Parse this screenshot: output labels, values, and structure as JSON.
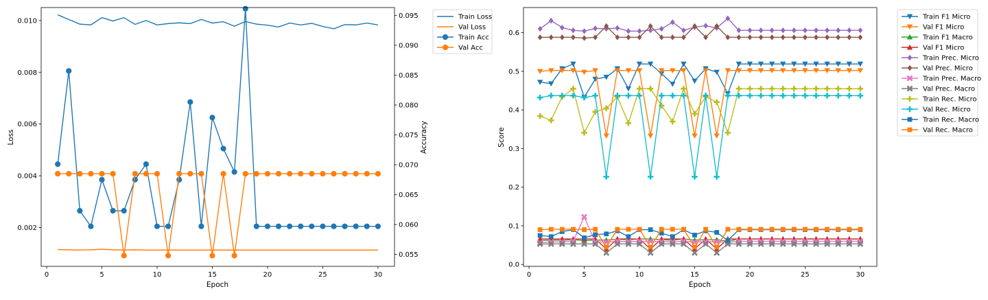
{
  "chart_data": [
    {
      "type": "line",
      "xlabel": "Epoch",
      "ylabel": "Loss",
      "ylabel_right": "Accuracy",
      "xlim": [
        -0.5,
        31.5
      ],
      "ylim": [
        0.0005,
        0.0105
      ],
      "ylim_right": [
        0.053,
        0.0963
      ],
      "xticks": [
        0,
        5,
        10,
        15,
        20,
        25,
        30
      ],
      "yticks": [
        0.002,
        0.004,
        0.006,
        0.008,
        0.01
      ],
      "ytick_labels": [
        "0.002",
        "0.004",
        "0.006",
        "0.008",
        "0.010"
      ],
      "yticks_right": [
        0.055,
        0.06,
        0.065,
        0.07,
        0.075,
        0.08,
        0.085,
        0.09,
        0.095
      ],
      "ytick_labels_right": [
        "0.055",
        "0.060",
        "0.065",
        "0.070",
        "0.075",
        "0.080",
        "0.085",
        "0.090",
        "0.095"
      ],
      "grid": false,
      "legend_position": "outside-right-top",
      "x": [
        1,
        2,
        3,
        4,
        5,
        6,
        7,
        8,
        9,
        10,
        11,
        12,
        13,
        14,
        15,
        16,
        17,
        18,
        19,
        20,
        21,
        22,
        23,
        24,
        25,
        26,
        27,
        28,
        29,
        30
      ],
      "series": [
        {
          "name": "Train Loss",
          "axis": "left",
          "color": "#1f77b4",
          "marker": "none",
          "values": [
            0.01022,
            0.01004,
            0.00986,
            0.00983,
            0.01011,
            0.00998,
            0.01011,
            0.00985,
            0.01,
            0.00983,
            0.00988,
            0.00991,
            0.00988,
            0.01004,
            0.0099,
            0.00995,
            0.00978,
            0.00996,
            0.00986,
            0.00982,
            0.00975,
            0.0099,
            0.00983,
            0.00989,
            0.00977,
            0.00968,
            0.00984,
            0.00983,
            0.0099,
            0.00983
          ]
        },
        {
          "name": "Val Loss",
          "axis": "left",
          "color": "#ff7f0e",
          "marker": "none",
          "values": [
            0.00115,
            0.00114,
            0.00113,
            0.00114,
            0.00116,
            0.00114,
            0.00113,
            0.00114,
            0.00113,
            0.00113,
            0.00113,
            0.00113,
            0.00113,
            0.00113,
            0.00113,
            0.00113,
            0.00113,
            0.00113,
            0.00113,
            0.00113,
            0.00113,
            0.00113,
            0.00113,
            0.00113,
            0.00113,
            0.00113,
            0.00113,
            0.00113,
            0.00113,
            0.00113
          ]
        },
        {
          "name": "Train Acc",
          "axis": "right",
          "color": "#1f77b4",
          "marker": "circle",
          "values": [
            0.0701,
            0.0857,
            0.0623,
            0.0597,
            0.0675,
            0.0623,
            0.0623,
            0.0675,
            0.0701,
            0.0597,
            0.0597,
            0.0675,
            0.0805,
            0.0597,
            0.0779,
            0.0727,
            0.0688,
            0.0961,
            0.0597,
            0.0597,
            0.0597,
            0.0597,
            0.0597,
            0.0597,
            0.0597,
            0.0597,
            0.0597,
            0.0597,
            0.0597,
            0.0597
          ]
        },
        {
          "name": "Val Acc",
          "axis": "right",
          "color": "#ff7f0e",
          "marker": "circle",
          "values": [
            0.0685,
            0.0685,
            0.0685,
            0.0685,
            0.0685,
            0.0685,
            0.0548,
            0.0685,
            0.0685,
            0.0685,
            0.0548,
            0.0685,
            0.0685,
            0.0685,
            0.0548,
            0.0685,
            0.0548,
            0.0685,
            0.0685,
            0.0685,
            0.0685,
            0.0685,
            0.0685,
            0.0685,
            0.0685,
            0.0685,
            0.0685,
            0.0685,
            0.0685,
            0.0685
          ]
        }
      ]
    },
    {
      "type": "line",
      "xlabel": "Epoch",
      "ylabel": "Score",
      "xlim": [
        -0.5,
        31.5
      ],
      "ylim": [
        -0.005,
        0.665
      ],
      "xticks": [
        0,
        5,
        10,
        15,
        20,
        25,
        30
      ],
      "yticks": [
        0.0,
        0.1,
        0.2,
        0.3,
        0.4,
        0.5,
        0.6
      ],
      "ytick_labels": [
        "0.0",
        "0.1",
        "0.2",
        "0.3",
        "0.4",
        "0.5",
        "0.6"
      ],
      "grid": false,
      "legend_position": "outside-right-top",
      "x": [
        1,
        2,
        3,
        4,
        5,
        6,
        7,
        8,
        9,
        10,
        11,
        12,
        13,
        14,
        15,
        16,
        17,
        18,
        19,
        20,
        21,
        22,
        23,
        24,
        25,
        26,
        27,
        28,
        29,
        30
      ],
      "series": [
        {
          "name": "Train F1 Micro",
          "color": "#1f77b4",
          "marker": "tri-down",
          "values": [
            0.472,
            0.468,
            0.507,
            0.519,
            0.433,
            0.48,
            0.485,
            0.507,
            0.455,
            0.519,
            0.519,
            0.494,
            0.467,
            0.519,
            0.475,
            0.507,
            0.498,
            0.442,
            0.519,
            0.519,
            0.519,
            0.519,
            0.519,
            0.519,
            0.519,
            0.519,
            0.519,
            0.519,
            0.519,
            0.519
          ]
        },
        {
          "name": "Val F1 Micro",
          "color": "#ff7f0e",
          "marker": "tri-down",
          "values": [
            0.5,
            0.502,
            0.502,
            0.502,
            0.498,
            0.502,
            0.333,
            0.502,
            0.502,
            0.502,
            0.333,
            0.502,
            0.502,
            0.502,
            0.333,
            0.502,
            0.333,
            0.502,
            0.502,
            0.502,
            0.502,
            0.502,
            0.502,
            0.502,
            0.502,
            0.502,
            0.502,
            0.502,
            0.502,
            0.502
          ]
        },
        {
          "name": "Train F1 Macro",
          "color": "#2ca02c",
          "marker": "tri-up",
          "values": [
            0.062,
            0.063,
            0.063,
            0.064,
            0.062,
            0.063,
            0.063,
            0.065,
            0.064,
            0.066,
            0.066,
            0.064,
            0.063,
            0.066,
            0.063,
            0.064,
            0.064,
            0.06,
            0.066,
            0.066,
            0.066,
            0.066,
            0.066,
            0.066,
            0.066,
            0.066,
            0.066,
            0.066,
            0.066,
            0.066
          ]
        },
        {
          "name": "Val F1 Micro",
          "color": "#d62728",
          "marker": "tri-up",
          "values": [
            0.066,
            0.066,
            0.066,
            0.066,
            0.066,
            0.066,
            0.04,
            0.066,
            0.066,
            0.066,
            0.04,
            0.066,
            0.066,
            0.066,
            0.04,
            0.066,
            0.04,
            0.066,
            0.066,
            0.066,
            0.066,
            0.066,
            0.066,
            0.066,
            0.066,
            0.066,
            0.066,
            0.066,
            0.066,
            0.066
          ]
        },
        {
          "name": "Train Prec. Micro",
          "color": "#9467bd",
          "marker": "diamond",
          "values": [
            0.61,
            0.631,
            0.613,
            0.606,
            0.604,
            0.611,
            0.61,
            0.612,
            0.604,
            0.604,
            0.606,
            0.61,
            0.627,
            0.606,
            0.614,
            0.618,
            0.612,
            0.637,
            0.606,
            0.606,
            0.606,
            0.606,
            0.606,
            0.606,
            0.606,
            0.606,
            0.606,
            0.606,
            0.606,
            0.606
          ]
        },
        {
          "name": "Val Prec. Micro",
          "color": "#8c564b",
          "marker": "diamond",
          "values": [
            0.588,
            0.588,
            0.588,
            0.588,
            0.586,
            0.588,
            0.617,
            0.588,
            0.588,
            0.588,
            0.617,
            0.588,
            0.588,
            0.588,
            0.617,
            0.588,
            0.617,
            0.588,
            0.588,
            0.588,
            0.588,
            0.588,
            0.588,
            0.588,
            0.588,
            0.588,
            0.588,
            0.588,
            0.588,
            0.588
          ]
        },
        {
          "name": "Train Prec. Macro",
          "color": "#e377c2",
          "marker": "x",
          "values": [
            0.056,
            0.058,
            0.058,
            0.06,
            0.123,
            0.058,
            0.058,
            0.06,
            0.059,
            0.06,
            0.06,
            0.059,
            0.058,
            0.06,
            0.058,
            0.059,
            0.059,
            0.057,
            0.06,
            0.06,
            0.06,
            0.06,
            0.06,
            0.06,
            0.06,
            0.06,
            0.06,
            0.06,
            0.06,
            0.06
          ]
        },
        {
          "name": "Val Prec. Macro",
          "color": "#7f7f7f",
          "marker": "x",
          "values": [
            0.053,
            0.053,
            0.053,
            0.053,
            0.053,
            0.053,
            0.03,
            0.053,
            0.053,
            0.053,
            0.03,
            0.053,
            0.053,
            0.053,
            0.03,
            0.053,
            0.03,
            0.053,
            0.053,
            0.053,
            0.053,
            0.053,
            0.053,
            0.053,
            0.053,
            0.053,
            0.053,
            0.053,
            0.053,
            0.053
          ]
        },
        {
          "name": "Train Rec. Micro",
          "color": "#bcbd22",
          "marker": "plus",
          "values": [
            0.384,
            0.373,
            0.434,
            0.455,
            0.341,
            0.395,
            0.404,
            0.434,
            0.366,
            0.455,
            0.455,
            0.411,
            0.37,
            0.455,
            0.39,
            0.434,
            0.42,
            0.341,
            0.455,
            0.455,
            0.455,
            0.455,
            0.455,
            0.455,
            0.455,
            0.455,
            0.455,
            0.455,
            0.455,
            0.455
          ]
        },
        {
          "name": "Val Rec. Micro",
          "color": "#17becf",
          "marker": "plus",
          "values": [
            0.432,
            0.437,
            0.437,
            0.437,
            0.432,
            0.437,
            0.227,
            0.437,
            0.437,
            0.437,
            0.227,
            0.437,
            0.437,
            0.437,
            0.227,
            0.437,
            0.227,
            0.437,
            0.437,
            0.437,
            0.437,
            0.437,
            0.437,
            0.437,
            0.437,
            0.437,
            0.437,
            0.437,
            0.437,
            0.437
          ]
        },
        {
          "name": "Train Rec. Macro",
          "color": "#1f77b4",
          "marker": "square",
          "values": [
            0.075,
            0.072,
            0.085,
            0.09,
            0.069,
            0.077,
            0.079,
            0.087,
            0.072,
            0.09,
            0.09,
            0.081,
            0.072,
            0.09,
            0.076,
            0.087,
            0.083,
            0.062,
            0.09,
            0.09,
            0.09,
            0.09,
            0.09,
            0.09,
            0.09,
            0.09,
            0.09,
            0.09,
            0.09,
            0.09
          ]
        },
        {
          "name": "Val Rec. Macro",
          "color": "#ff7f0e",
          "marker": "square",
          "values": [
            0.09,
            0.091,
            0.091,
            0.091,
            0.09,
            0.091,
            0.045,
            0.091,
            0.091,
            0.091,
            0.045,
            0.091,
            0.091,
            0.091,
            0.045,
            0.091,
            0.045,
            0.091,
            0.091,
            0.091,
            0.091,
            0.091,
            0.091,
            0.091,
            0.091,
            0.091,
            0.091,
            0.091,
            0.091,
            0.091
          ]
        }
      ]
    }
  ]
}
